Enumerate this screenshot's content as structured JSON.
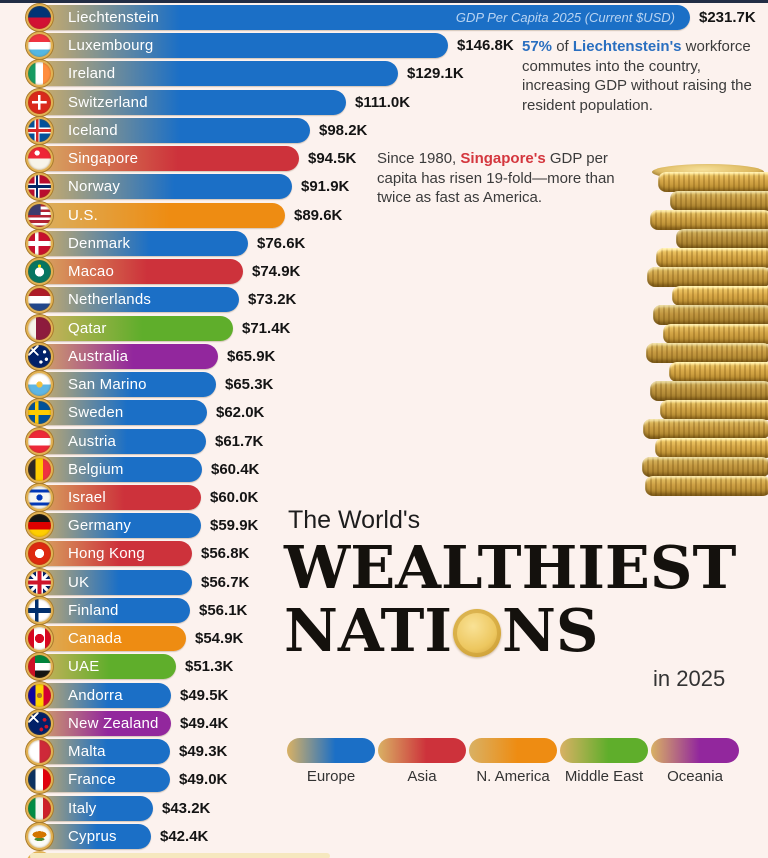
{
  "page": {
    "background": "#fcf2ee",
    "top_strip_color": "#222d45"
  },
  "chart_data": {
    "type": "bar",
    "orientation": "horizontal",
    "title": "The World's Wealthiest Nations in 2025",
    "axis_note": "GDP Per Capita 2025 (Current $USD)",
    "value_unit": "GDP per capita, thousands of current USD",
    "max_value": 231.7,
    "bar_gradient_left": "#d9b164",
    "legend_position": "bottom-right",
    "legend": [
      {
        "label": "Europe",
        "color": "#1b6fc6"
      },
      {
        "label": "Asia",
        "color": "#cd323b"
      },
      {
        "label": "N. America",
        "color": "#ee8c12"
      },
      {
        "label": "Middle East",
        "color": "#5fae2b"
      },
      {
        "label": "Oceania",
        "color": "#92279d"
      }
    ],
    "countries": [
      {
        "name": "Liechtenstein",
        "value": 231.7,
        "label": "$231.7K",
        "region": "Europe",
        "flag": "li",
        "show_axis_note": true
      },
      {
        "name": "Luxembourg",
        "value": 146.8,
        "label": "$146.8K",
        "region": "Europe",
        "flag": "lu"
      },
      {
        "name": "Ireland",
        "value": 129.1,
        "label": "$129.1K",
        "region": "Europe",
        "flag": "ie"
      },
      {
        "name": "Switzerland",
        "value": 111.0,
        "label": "$111.0K",
        "region": "Europe",
        "flag": "ch"
      },
      {
        "name": "Iceland",
        "value": 98.2,
        "label": "$98.2K",
        "region": "Europe",
        "flag": "is"
      },
      {
        "name": "Singapore",
        "value": 94.5,
        "label": "$94.5K",
        "region": "Asia",
        "flag": "sg"
      },
      {
        "name": "Norway",
        "value": 91.9,
        "label": "$91.9K",
        "region": "Europe",
        "flag": "no"
      },
      {
        "name": "U.S.",
        "value": 89.6,
        "label": "$89.6K",
        "region": "N. America",
        "flag": "us"
      },
      {
        "name": "Denmark",
        "value": 76.6,
        "label": "$76.6K",
        "region": "Europe",
        "flag": "dk"
      },
      {
        "name": "Macao",
        "value": 74.9,
        "label": "$74.9K",
        "region": "Asia",
        "flag": "mo"
      },
      {
        "name": "Netherlands",
        "value": 73.2,
        "label": "$73.2K",
        "region": "Europe",
        "flag": "nl"
      },
      {
        "name": "Qatar",
        "value": 71.4,
        "label": "$71.4K",
        "region": "Middle East",
        "flag": "qa"
      },
      {
        "name": "Australia",
        "value": 65.9,
        "label": "$65.9K",
        "region": "Oceania",
        "flag": "au"
      },
      {
        "name": "San Marino",
        "value": 65.3,
        "label": "$65.3K",
        "region": "Europe",
        "flag": "sm"
      },
      {
        "name": "Sweden",
        "value": 62.0,
        "label": "$62.0K",
        "region": "Europe",
        "flag": "se"
      },
      {
        "name": "Austria",
        "value": 61.7,
        "label": "$61.7K",
        "region": "Europe",
        "flag": "at"
      },
      {
        "name": "Belgium",
        "value": 60.4,
        "label": "$60.4K",
        "region": "Europe",
        "flag": "be"
      },
      {
        "name": "Israel",
        "value": 60.0,
        "label": "$60.0K",
        "region": "Asia",
        "flag": "il"
      },
      {
        "name": "Germany",
        "value": 59.9,
        "label": "$59.9K",
        "region": "Europe",
        "flag": "de"
      },
      {
        "name": "Hong Kong",
        "value": 56.8,
        "label": "$56.8K",
        "region": "Asia",
        "flag": "hk"
      },
      {
        "name": "UK",
        "value": 56.7,
        "label": "$56.7K",
        "region": "Europe",
        "flag": "gb"
      },
      {
        "name": "Finland",
        "value": 56.1,
        "label": "$56.1K",
        "region": "Europe",
        "flag": "fi"
      },
      {
        "name": "Canada",
        "value": 54.9,
        "label": "$54.9K",
        "region": "N. America",
        "flag": "ca"
      },
      {
        "name": "UAE",
        "value": 51.3,
        "label": "$51.3K",
        "region": "Middle East",
        "flag": "ae"
      },
      {
        "name": "Andorra",
        "value": 49.5,
        "label": "$49.5K",
        "region": "Europe",
        "flag": "ad"
      },
      {
        "name": "New Zealand",
        "value": 49.4,
        "label": "$49.4K",
        "region": "Oceania",
        "flag": "nz"
      },
      {
        "name": "Malta",
        "value": 49.3,
        "label": "$49.3K",
        "region": "Europe",
        "flag": "mt"
      },
      {
        "name": "France",
        "value": 49.0,
        "label": "$49.0K",
        "region": "Europe",
        "flag": "fr"
      },
      {
        "name": "Italy",
        "value": 43.2,
        "label": "$43.2K",
        "region": "Europe",
        "flag": "it"
      },
      {
        "name": "Cyprus",
        "value": 42.4,
        "label": "$42.4K",
        "region": "Europe",
        "flag": "cy"
      }
    ]
  },
  "annotations": {
    "liechtenstein": {
      "segments": [
        {
          "t": "57%",
          "s": "hl-blue"
        },
        {
          "t": " of ",
          "s": ""
        },
        {
          "t": "Liechtenstein's",
          "s": "hl-blue"
        },
        {
          "t": " workforce commutes into the country, increasing GDP without raising the resident population.",
          "s": ""
        }
      ]
    },
    "singapore": {
      "segments": [
        {
          "t": "Since 1980, ",
          "s": ""
        },
        {
          "t": "Singapore's",
          "s": "hl-red"
        },
        {
          "t": " GDP per capita has risen 19-fold—more than twice as fast as America.",
          "s": ""
        }
      ]
    }
  },
  "title": {
    "kicker": "The World's",
    "line1": "WEALTHIEST",
    "line2_pre": "NATI",
    "line2_post": "NS",
    "year_suffix": "in 2025"
  }
}
